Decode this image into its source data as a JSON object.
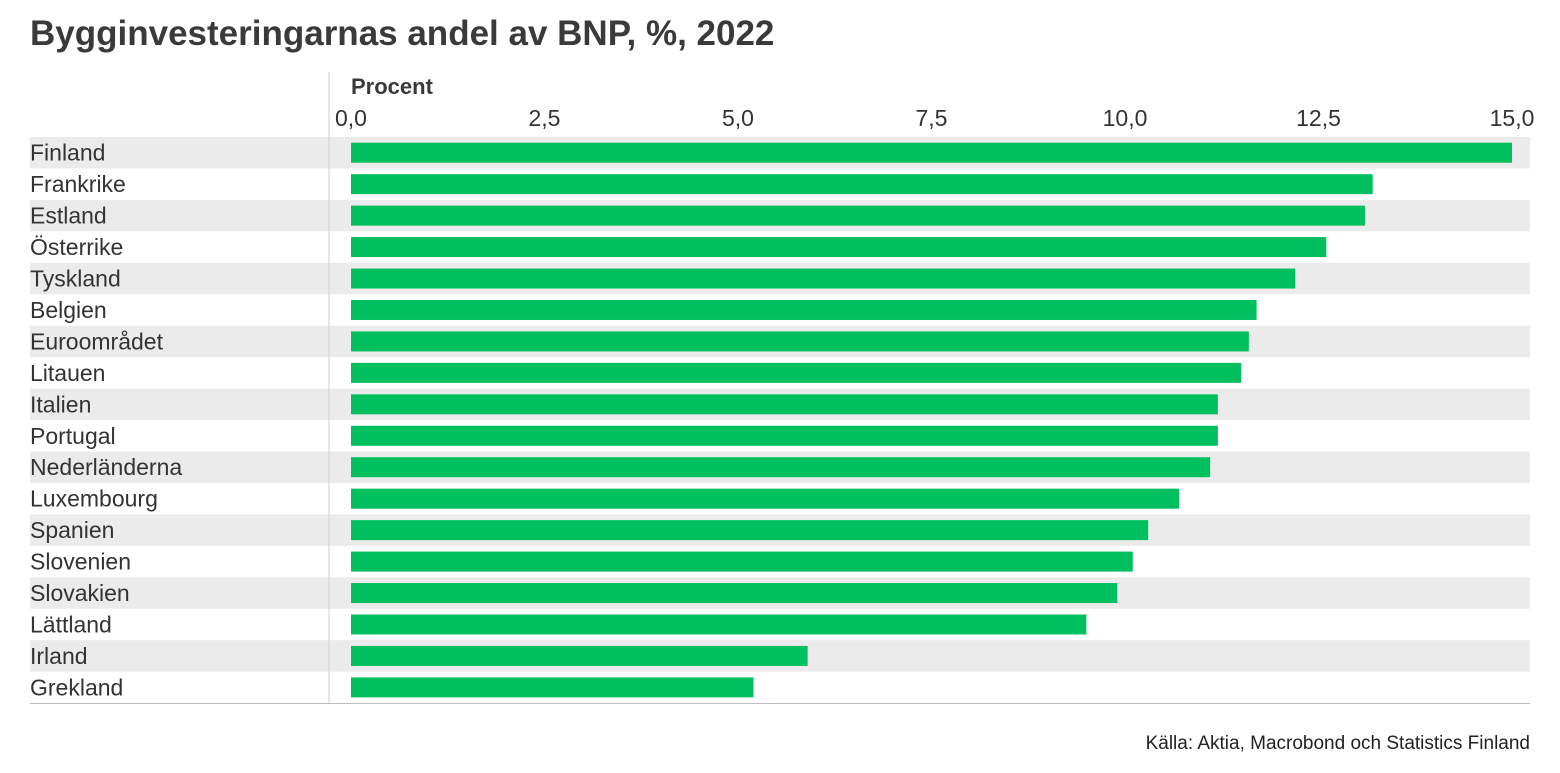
{
  "chart_data": {
    "type": "bar",
    "orientation": "horizontal",
    "title": "Bygginvesteringarnas andel av BNP, %, 2022",
    "xlabel": "Procent",
    "ylabel": "",
    "xlim": [
      0,
      15
    ],
    "ticks": [
      "0,0",
      "2,5",
      "5,0",
      "7,5",
      "10,0",
      "12,5",
      "15,0"
    ],
    "tick_values": [
      0,
      2.5,
      5,
      7.5,
      10,
      12.5,
      15
    ],
    "categories": [
      "Finland",
      "Frankrike",
      "Estland",
      "Österrike",
      "Tyskland",
      "Belgien",
      "Euroområdet",
      "Litauen",
      "Italien",
      "Portugal",
      "Nederländerna",
      "Luxembourg",
      "Spanien",
      "Slovenien",
      "Slovakien",
      "Lättland",
      "Irland",
      "Grekland"
    ],
    "values": [
      15.0,
      13.2,
      13.1,
      12.6,
      12.2,
      11.7,
      11.6,
      11.5,
      11.2,
      11.2,
      11.1,
      10.7,
      10.3,
      10.1,
      9.9,
      9.5,
      5.9,
      5.2
    ],
    "bar_color": "#00bf5f",
    "band_color": "#ebebeb",
    "grid": false,
    "legend": "none",
    "source": "Källa: Aktia, Macrobond och Statistics Finland"
  }
}
